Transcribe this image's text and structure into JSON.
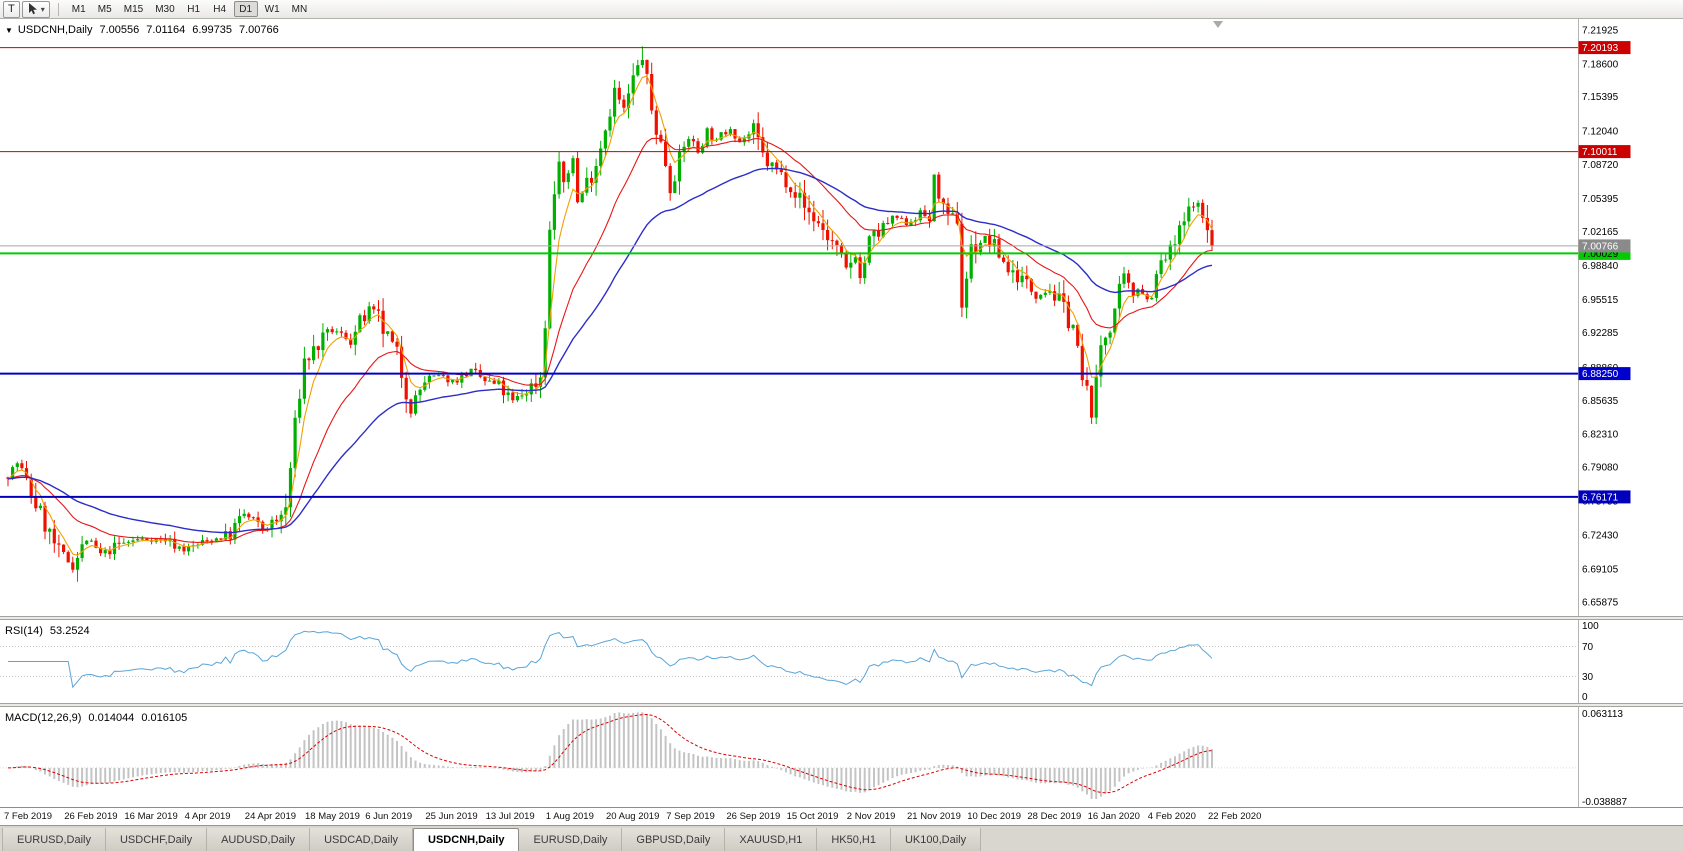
{
  "toolbar": {
    "tool_button_label": "T",
    "cursor_caret_glyph": "▾",
    "timeframes": [
      "M1",
      "M5",
      "M15",
      "M30",
      "H1",
      "H4",
      "D1",
      "W1",
      "MN"
    ],
    "active_timeframe": "D1"
  },
  "chart": {
    "title": {
      "collapse_glyph": "▼",
      "symbol": "USDCNH,Daily",
      "open": "7.00556",
      "high": "7.01164",
      "low": "6.99735",
      "close": "7.00766"
    },
    "price_axis": {
      "top_price": 7.23,
      "bottom_price": 6.645,
      "labels": [
        "7.21925",
        "7.18600",
        "7.15395",
        "7.12040",
        "7.08720",
        "7.05395",
        "7.02165",
        "6.98840",
        "6.95515",
        "6.92285",
        "6.88860",
        "6.85635",
        "6.82310",
        "6.79080",
        "6.75755",
        "6.72430",
        "6.69105",
        "6.65875"
      ]
    },
    "hlines": [
      {
        "price": 7.20193,
        "label": "7.20193",
        "color": "#cc0000",
        "width": 1,
        "badge_bg": "#cc0000",
        "badge_fg": "#ffffff"
      },
      {
        "price": 7.10011,
        "label": "7.10011",
        "color": "#cc0000",
        "width": 1,
        "badge_bg": "#cc0000",
        "badge_fg": "#ffffff"
      },
      {
        "price": 7.00029,
        "label": "7.00029",
        "color": "#00cc00",
        "width": 2,
        "badge_bg": "#00cc00",
        "badge_fg": "#000000"
      },
      {
        "price": 6.8825,
        "label": "6.88250",
        "color": "#0000cc",
        "width": 2,
        "badge_bg": "#0000cc",
        "badge_fg": "#ffffff"
      },
      {
        "price": 6.76171,
        "label": "6.76171",
        "color": "#0000bb",
        "width": 2,
        "badge_bg": "#0000bb",
        "badge_fg": "#ffffff"
      }
    ],
    "current_price": {
      "value": 7.00766,
      "label": "7.00766",
      "line_color": "#a8a8a8",
      "badge_bg": "#8a8a8a",
      "badge_fg": "#ffffff"
    },
    "shift_marker_color": "#aaaaaa"
  },
  "chart_data": {
    "type": "candlestick",
    "symbol": "USDCNH",
    "timeframe": "Daily",
    "bars": 261,
    "seed": 7,
    "last_close": 7.00766,
    "up_color": "#00b000",
    "down_color": "#ee1100",
    "y_range": [
      6.645,
      7.23
    ],
    "close_anchors": [
      [
        0,
        6.785
      ],
      [
        2,
        6.795
      ],
      [
        5,
        6.765
      ],
      [
        8,
        6.735
      ],
      [
        11,
        6.705
      ],
      [
        14,
        6.695
      ],
      [
        17,
        6.72
      ],
      [
        20,
        6.705
      ],
      [
        24,
        6.715
      ],
      [
        28,
        6.72
      ],
      [
        34,
        6.72
      ],
      [
        38,
        6.71
      ],
      [
        44,
        6.72
      ],
      [
        48,
        6.725
      ],
      [
        51,
        6.745
      ],
      [
        55,
        6.73
      ],
      [
        58,
        6.737
      ],
      [
        60,
        6.75
      ],
      [
        61,
        6.79
      ],
      [
        62,
        6.83
      ],
      [
        63,
        6.865
      ],
      [
        64,
        6.895
      ],
      [
        66,
        6.905
      ],
      [
        68,
        6.915
      ],
      [
        70,
        6.925
      ],
      [
        74,
        6.915
      ],
      [
        76,
        6.93
      ],
      [
        78,
        6.945
      ],
      [
        80,
        6.935
      ],
      [
        81,
        6.925
      ],
      [
        84,
        6.9
      ],
      [
        87,
        6.85
      ],
      [
        90,
        6.875
      ],
      [
        93,
        6.88
      ],
      [
        96,
        6.875
      ],
      [
        100,
        6.885
      ],
      [
        103,
        6.875
      ],
      [
        106,
        6.87
      ],
      [
        109,
        6.855
      ],
      [
        113,
        6.87
      ],
      [
        115,
        6.88
      ],
      [
        116,
        6.935
      ],
      [
        117,
        7.02
      ],
      [
        118,
        7.06
      ],
      [
        119,
        7.09
      ],
      [
        120,
        7.06
      ],
      [
        121,
        7.08
      ],
      [
        122,
        7.095
      ],
      [
        123,
        7.05
      ],
      [
        124,
        7.06
      ],
      [
        127,
        7.09
      ],
      [
        129,
        7.125
      ],
      [
        131,
        7.16
      ],
      [
        133,
        7.14
      ],
      [
        135,
        7.17
      ],
      [
        137,
        7.195
      ],
      [
        139,
        7.14
      ],
      [
        142,
        7.09
      ],
      [
        143,
        7.065
      ],
      [
        145,
        7.09
      ],
      [
        147,
        7.115
      ],
      [
        149,
        7.1
      ],
      [
        151,
        7.12
      ],
      [
        153,
        7.11
      ],
      [
        156,
        7.125
      ],
      [
        158,
        7.11
      ],
      [
        161,
        7.12
      ],
      [
        163,
        7.095
      ],
      [
        165,
        7.085
      ],
      [
        169,
        7.07
      ],
      [
        172,
        7.045
      ],
      [
        175,
        7.03
      ],
      [
        178,
        7.01
      ],
      [
        181,
        6.985
      ],
      [
        183,
        7.0
      ],
      [
        184,
        6.975
      ],
      [
        186,
        7.01
      ],
      [
        188,
        7.02
      ],
      [
        190,
        7.03
      ],
      [
        192,
        7.035
      ],
      [
        194,
        7.03
      ],
      [
        197,
        7.04
      ],
      [
        199,
        7.035
      ],
      [
        200,
        7.075
      ],
      [
        202,
        7.04
      ],
      [
        203,
        7.03
      ],
      [
        205,
        7.035
      ],
      [
        206,
        6.95
      ],
      [
        208,
        7.005
      ],
      [
        211,
        7.015
      ],
      [
        214,
        7.0
      ],
      [
        216,
        6.985
      ],
      [
        219,
        6.975
      ],
      [
        222,
        6.96
      ],
      [
        225,
        6.965
      ],
      [
        228,
        6.945
      ],
      [
        230,
        6.93
      ],
      [
        232,
        6.875
      ],
      [
        234,
        6.85
      ],
      [
        235,
        6.87
      ],
      [
        236,
        6.91
      ],
      [
        238,
        6.93
      ],
      [
        240,
        6.96
      ],
      [
        241,
        6.975
      ],
      [
        243,
        6.96
      ],
      [
        244,
        6.97
      ],
      [
        246,
        6.955
      ],
      [
        248,
        6.975
      ],
      [
        249,
        6.99
      ],
      [
        251,
        7.0
      ],
      [
        253,
        7.02
      ],
      [
        254,
        7.03
      ],
      [
        256,
        7.05
      ],
      [
        257,
        7.045
      ],
      [
        259,
        7.025
      ],
      [
        260,
        7.00766
      ]
    ],
    "moving_averages": [
      {
        "period": 5,
        "color": "#f0a000"
      },
      {
        "period": 20,
        "color": "#e81717"
      },
      {
        "period": 45,
        "color": "#2d2dc8"
      }
    ],
    "x_axis_dates": [
      "7 Feb 2019",
      "26 Feb 2019",
      "16 Mar 2019",
      "4 Apr 2019",
      "24 Apr 2019",
      "18 May 2019",
      "6 Jun 2019",
      "25 Jun 2019",
      "13 Jul 2019",
      "1 Aug 2019",
      "20 Aug 2019",
      "7 Sep 2019",
      "26 Sep 2019",
      "15 Oct 2019",
      "2 Nov 2019",
      "21 Nov 2019",
      "10 Dec 2019",
      "28 Dec 2019",
      "16 Jan 2020",
      "4 Feb 2020",
      "22 Feb 2020"
    ]
  },
  "rsi": {
    "name_label": "RSI(14)",
    "value_label": "53.2524",
    "period": 14,
    "line_color": "#58a5d8",
    "axis_labels": [
      "100",
      "70",
      "30",
      "0"
    ],
    "level_lines": [
      70,
      30
    ]
  },
  "macd": {
    "name_label": "MACD(12,26,9)",
    "value_label": "0.014044",
    "signal_label": "0.016105",
    "fast": 12,
    "slow": 26,
    "signal": 9,
    "histogram_color": "#c4c4c4",
    "signal_color": "#e00000",
    "axis_top_label": "0.063113",
    "axis_bottom_label": "-0.038887",
    "scale_max": 0.063113,
    "scale_min": -0.038887
  },
  "tabs": {
    "active_index": 4,
    "items": [
      "EURUSD,Daily",
      "USDCHF,Daily",
      "AUDUSD,Daily",
      "USDCAD,Daily",
      "USDCNH,Daily",
      "EURUSD,Daily",
      "GBPUSD,Daily",
      "XAUUSD,H1",
      "HK50,H1",
      "UK100,Daily"
    ]
  }
}
